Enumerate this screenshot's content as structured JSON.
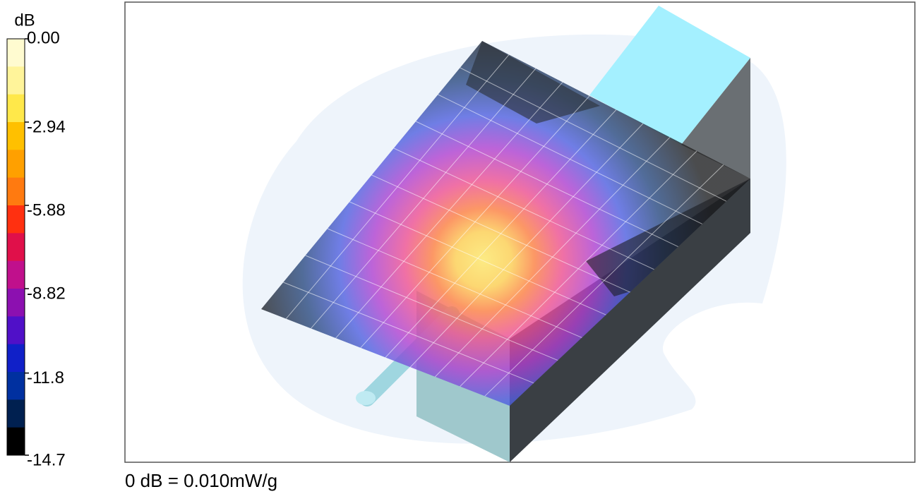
{
  "colorbar": {
    "unit": "dB",
    "lim": [
      -14.7,
      0
    ],
    "ticks": [
      {
        "value": 0,
        "label": "0.00"
      },
      -2.94,
      -5.88,
      -8.82,
      -11.8,
      -14.7
    ],
    "colors": [
      "#fffbd0",
      "#fff49a",
      "#ffe84a",
      "#ffc000",
      "#ffa000",
      "#ff7a10",
      "#ff3010",
      "#e0104a",
      "#c0108c",
      "#8c10b0",
      "#5010c8",
      "#1020c8",
      "#0030a0",
      "#002050",
      "#000000"
    ]
  },
  "footnote": "0 dB = 0.010mW/g"
}
